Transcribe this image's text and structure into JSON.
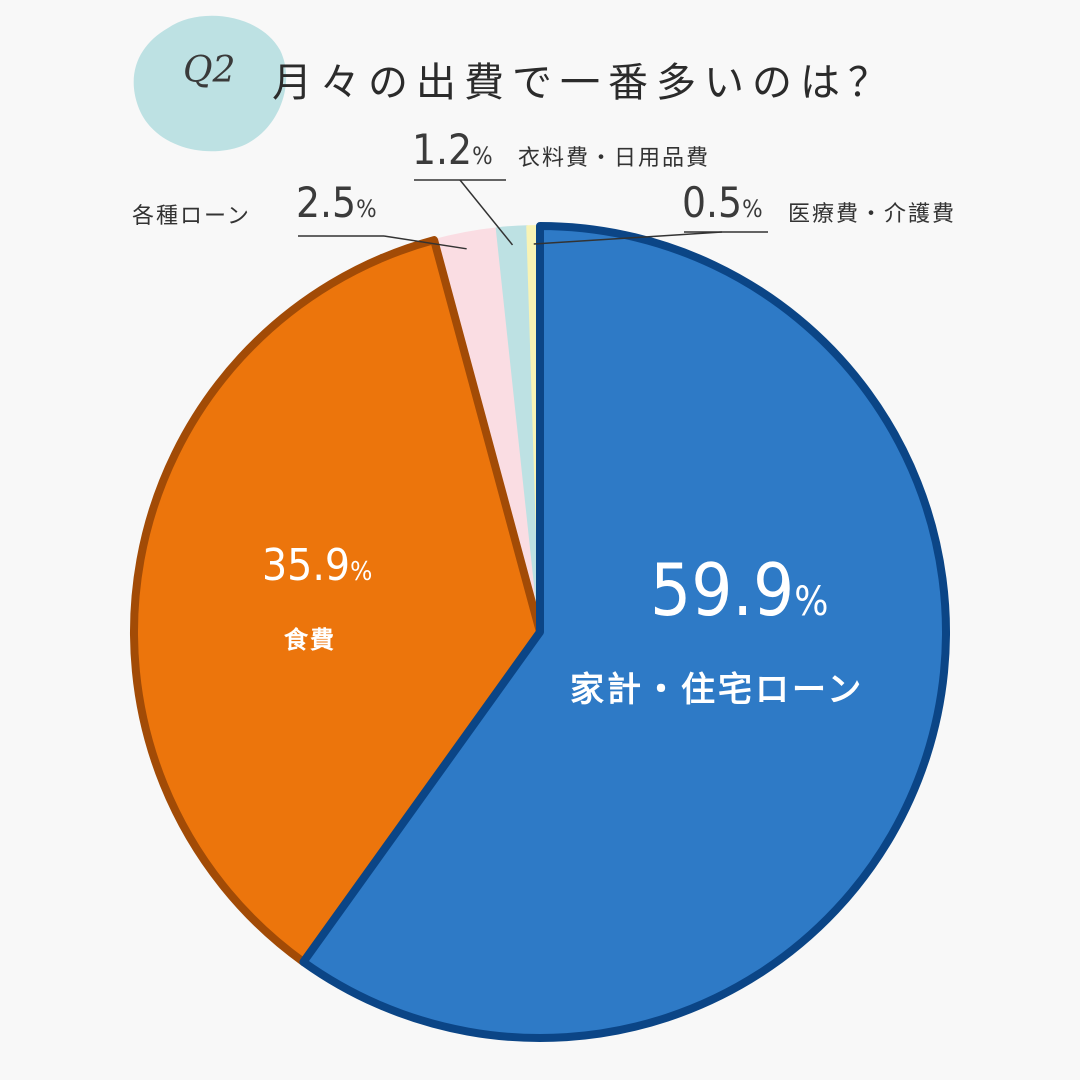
{
  "title": {
    "q": "Q2",
    "text": "月々の出費で一番多いのは？"
  },
  "colors": {
    "background": "#f8f8f8",
    "title_blob": "#bde1e3"
  },
  "chart_data": {
    "type": "pie",
    "title": "月々の出費で一番多いのは？",
    "start": "12 o'clock",
    "direction": "clockwise",
    "slices": [
      {
        "label": "家計・住宅ローン",
        "value": 59.9,
        "value_text": "59.9",
        "unit": "%",
        "color": "#2e7ac6",
        "border": "#0b4586"
      },
      {
        "label": "食費",
        "value": 35.9,
        "value_text": "35.9",
        "unit": "%",
        "color": "#ec750c",
        "border": "#a24b06"
      },
      {
        "label": "各種ローン",
        "value": 2.5,
        "value_text": "2.5",
        "unit": "%",
        "color": "#fadde3",
        "border": "#fadde3"
      },
      {
        "label": "衣料費・日用品費",
        "value": 1.2,
        "value_text": "1.2",
        "unit": "%",
        "color": "#bde1e3",
        "border": "#bde1e3"
      },
      {
        "label": "医療費・介護費",
        "value": 0.5,
        "value_text": "0.5",
        "unit": "%",
        "color": "#f8f3b5",
        "border": "#f8f3b5"
      }
    ]
  }
}
